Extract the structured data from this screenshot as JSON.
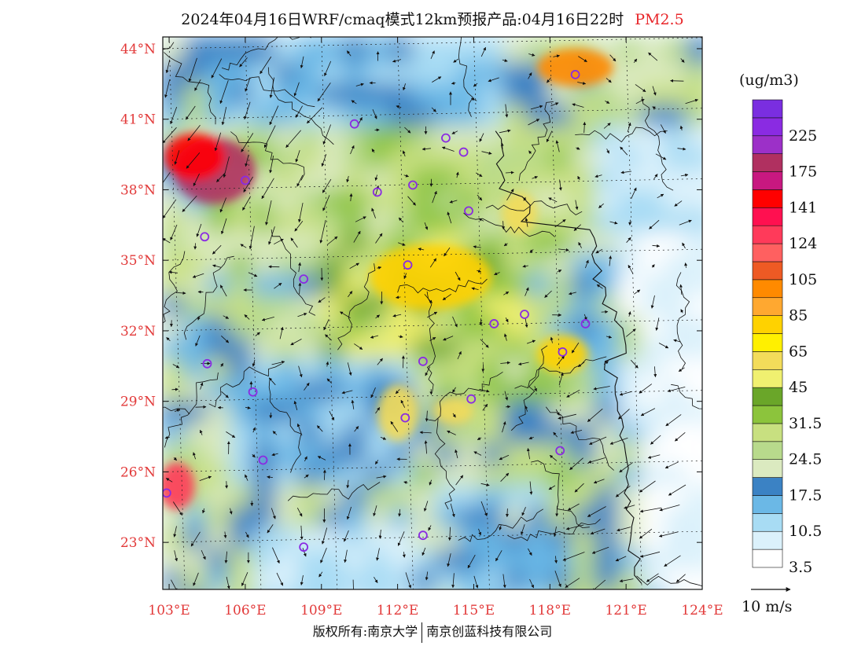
{
  "title": {
    "main": "2024年04月16日WRF/cmaq模式12km预报产品:04月16日22时",
    "pollutant": "PM2.5"
  },
  "map": {
    "lon_min": 102.75,
    "lon_max": 124.0,
    "lat_min": 21.0,
    "lat_max": 44.5,
    "lat_ticks": [
      {
        "value": 44,
        "label": "44°N"
      },
      {
        "value": 41,
        "label": "41°N"
      },
      {
        "value": 38,
        "label": "38°N"
      },
      {
        "value": 35,
        "label": "35°N"
      },
      {
        "value": 32,
        "label": "32°N"
      },
      {
        "value": 29,
        "label": "29°N"
      },
      {
        "value": 26,
        "label": "26°N"
      },
      {
        "value": 23,
        "label": "23°N"
      }
    ],
    "lon_ticks": [
      {
        "value": 103,
        "label": "103°E"
      },
      {
        "value": 106,
        "label": "106°E"
      },
      {
        "value": 109,
        "label": "109°E"
      },
      {
        "value": 112,
        "label": "112°E"
      },
      {
        "value": 115,
        "label": "115°E"
      },
      {
        "value": 118,
        "label": "118°E"
      },
      {
        "value": 121,
        "label": "121°E"
      },
      {
        "value": 124,
        "label": "124°E"
      }
    ],
    "city_markers": [
      {
        "lon": 119.0,
        "lat": 42.9
      },
      {
        "lon": 110.3,
        "lat": 40.8
      },
      {
        "lon": 113.9,
        "lat": 40.2
      },
      {
        "lon": 114.6,
        "lat": 39.6
      },
      {
        "lon": 106.0,
        "lat": 38.4
      },
      {
        "lon": 111.2,
        "lat": 37.9
      },
      {
        "lon": 112.6,
        "lat": 38.2
      },
      {
        "lon": 114.8,
        "lat": 37.1
      },
      {
        "lon": 104.4,
        "lat": 36.0
      },
      {
        "lon": 112.4,
        "lat": 34.8
      },
      {
        "lon": 108.3,
        "lat": 34.2
      },
      {
        "lon": 115.8,
        "lat": 32.3
      },
      {
        "lon": 117.0,
        "lat": 32.7
      },
      {
        "lon": 119.4,
        "lat": 32.3
      },
      {
        "lon": 118.5,
        "lat": 31.1
      },
      {
        "lon": 104.5,
        "lat": 30.6
      },
      {
        "lon": 113.0,
        "lat": 30.7
      },
      {
        "lon": 106.3,
        "lat": 29.4
      },
      {
        "lon": 114.9,
        "lat": 29.1
      },
      {
        "lon": 112.3,
        "lat": 28.3
      },
      {
        "lon": 106.7,
        "lat": 26.5
      },
      {
        "lon": 118.4,
        "lat": 26.9
      },
      {
        "lon": 102.9,
        "lat": 25.1
      },
      {
        "lon": 113.0,
        "lat": 23.3
      },
      {
        "lon": 108.3,
        "lat": 22.8
      }
    ],
    "hotspots": [
      {
        "lon": 104.8,
        "lat": 38.8,
        "level": 10,
        "rx": 1.6,
        "ry": 1.4
      },
      {
        "lon": 104.0,
        "lat": 39.4,
        "level": 9,
        "rx": 1.2,
        "ry": 1.0
      },
      {
        "lon": 103.3,
        "lat": 25.4,
        "level": 8,
        "rx": 0.7,
        "ry": 1.0
      },
      {
        "lon": 119.0,
        "lat": 43.2,
        "level": 7,
        "rx": 1.5,
        "ry": 0.8
      },
      {
        "lon": 113.3,
        "lat": 34.3,
        "level": 6,
        "rx": 2.4,
        "ry": 1.4
      },
      {
        "lon": 118.5,
        "lat": 31.0,
        "level": 6,
        "rx": 1.0,
        "ry": 0.8
      },
      {
        "lon": 112.0,
        "lat": 28.5,
        "level": 5,
        "rx": 0.8,
        "ry": 1.2
      },
      {
        "lon": 114.2,
        "lat": 28.6,
        "level": 5,
        "rx": 0.8,
        "ry": 0.6
      },
      {
        "lon": 116.8,
        "lat": 37.0,
        "level": 5,
        "rx": 0.7,
        "ry": 0.9
      }
    ]
  },
  "colorbar": {
    "title": "(ug/m3)",
    "levels": [
      {
        "color": "#ffffff",
        "label": "3.5"
      },
      {
        "color": "#dbf1fb",
        "label": ""
      },
      {
        "color": "#a8dcf4",
        "label": "10.5"
      },
      {
        "color": "#6bb8e6",
        "label": ""
      },
      {
        "color": "#3b82c4",
        "label": "17.5"
      },
      {
        "color": "#dbeac0",
        "label": ""
      },
      {
        "color": "#b8da8c",
        "label": "24.5"
      },
      {
        "color": "#c8e080",
        "label": ""
      },
      {
        "color": "#8cc43c",
        "label": "31.5"
      },
      {
        "color": "#6aa629",
        "label": ""
      },
      {
        "color": "#f0f070",
        "label": "45"
      },
      {
        "color": "#f3dc5a",
        "label": ""
      },
      {
        "color": "#fff000",
        "label": "65"
      },
      {
        "color": "#ffd200",
        "label": ""
      },
      {
        "color": "#ffa830",
        "label": "85"
      },
      {
        "color": "#ff8a00",
        "label": ""
      },
      {
        "color": "#ee5a24",
        "label": "105"
      },
      {
        "color": "#ff6060",
        "label": ""
      },
      {
        "color": "#ff3a5a",
        "label": "124"
      },
      {
        "color": "#ff1050",
        "label": ""
      },
      {
        "color": "#ff0000",
        "label": "141"
      },
      {
        "color": "#c81880",
        "label": ""
      },
      {
        "color": "#b03060",
        "label": "175"
      },
      {
        "color": "#9c30c8",
        "label": ""
      },
      {
        "color": "#8a2be2",
        "label": "225"
      },
      {
        "color": "#7a2ee0",
        "label": ""
      }
    ]
  },
  "wind_legend": {
    "label": "10 m/s"
  },
  "footer": {
    "left": "版权所有:南京大学",
    "right": "南京创蓝科技有限公司"
  }
}
